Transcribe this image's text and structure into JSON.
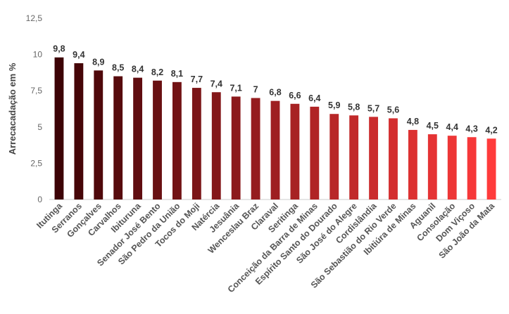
{
  "chart_data": {
    "type": "bar",
    "title": "",
    "xlabel": "",
    "ylabel": "Arrecacadação em %",
    "ylim": [
      0,
      12.5
    ],
    "yticks": [
      0,
      2.5,
      5,
      7.5,
      10,
      12.5
    ],
    "ytick_labels": [
      "0",
      "2,5",
      "5",
      "7,5",
      "10",
      "12,5"
    ],
    "grid": false,
    "legend": "none",
    "categories": [
      "Itutinga",
      "Serranos",
      "Gonçalves",
      "Carvalhos",
      "Ibituruna",
      "Senador José Bento",
      "São Pedro da União",
      "Tocos do Moji",
      "Natércia",
      "Jesuânia",
      "Wenceslau Braz",
      "Claraval",
      "Seritinga",
      "Conceição da Barra de Minas",
      "Espírito Santo do Dourado",
      "São José do Alegre",
      "Cordislândia",
      "São Sebastião do Rio Verde",
      "Ibitiúra de Minas",
      "Aguanil",
      "Consolação",
      "Dom Viçoso",
      "São João da Mata"
    ],
    "values": [
      9.8,
      9.4,
      8.9,
      8.5,
      8.4,
      8.2,
      8.1,
      7.7,
      7.4,
      7.1,
      7.0,
      6.8,
      6.6,
      6.4,
      5.9,
      5.8,
      5.7,
      5.6,
      4.8,
      4.5,
      4.4,
      4.3,
      4.2
    ],
    "value_labels": [
      "9,8",
      "9,4",
      "8,9",
      "8,5",
      "8,4",
      "8,2",
      "8,1",
      "7,7",
      "7,4",
      "7,1",
      "7",
      "6,8",
      "6,6",
      "6,4",
      "5,9",
      "5,8",
      "5,7",
      "5,6",
      "4,8",
      "4,5",
      "4,4",
      "4,3",
      "4,2"
    ],
    "bar_color_start": "#3d0306",
    "bar_color_end": "#ff3b3b"
  }
}
